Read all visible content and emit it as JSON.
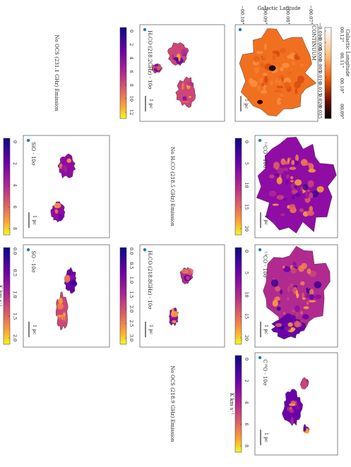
{
  "axes": {
    "latitude_label": "Galactic Latitude",
    "latitude_ticks": [
      "−00.10°",
      "−00.09°",
      "−00.08°",
      "−00.07°"
    ],
    "longitude_label": "Galactic Longitude",
    "longitude_ticks": [
      "00.12°",
      "00.11°",
      "00.10°",
      "00.09°"
    ]
  },
  "panels": [
    {
      "label": "CONTINUUM",
      "scalebar": "1 pc",
      "colorbar_ticks": [
        "−0.010",
        "−0.005",
        "0.000",
        "0.005",
        "0.010",
        "0.015",
        "0.020",
        "0.025"
      ]
    },
    {
      "label": "¹²CO - 10σ",
      "scalebar": "1 pc",
      "colorbar_ticks": [
        "0",
        "5",
        "10",
        "15",
        "20"
      ]
    },
    {
      "label": "¹³CO - 10σ",
      "scalebar": "1 pc",
      "colorbar_ticks": [
        "0",
        "5",
        "10",
        "15",
        "20"
      ]
    },
    {
      "label": "C¹⁸O - 10σ",
      "scalebar": "1 pc",
      "colorbar_ticks": [
        "0",
        "2",
        "4",
        "6",
        "8"
      ],
      "unit": "K km s⁻¹"
    },
    {
      "label": "H₂CO (218.2GHz) - 10σ",
      "scalebar": "1 pc",
      "colorbar_ticks": [
        "0",
        "2",
        "4",
        "6",
        "8",
        "10",
        "12"
      ]
    },
    {
      "label": "H₂CO (218.8GHz) - 10σ",
      "scalebar": "1 pc",
      "colorbar_ticks": [
        "0.0",
        "0.5",
        "1.0",
        "1.5",
        "2.0",
        "2.5",
        "3.0"
      ]
    },
    {
      "label": "SiO - 10σ",
      "scalebar": "1 pc",
      "colorbar_ticks": [
        "0",
        "2",
        "4",
        "6",
        "8"
      ]
    },
    {
      "label": "SO - 10σ",
      "scalebar": "1 pc",
      "colorbar_ticks": [
        "0.0",
        "0.5",
        "1.0",
        "1.5",
        "2.0"
      ],
      "unit": "K km s⁻¹"
    }
  ],
  "no_emission": [
    "No OCS (231.1 GHz) Emission",
    "No H₂CO (218.5 GHz) Emission",
    "No OCS (218.9 GHz) Emission"
  ]
}
